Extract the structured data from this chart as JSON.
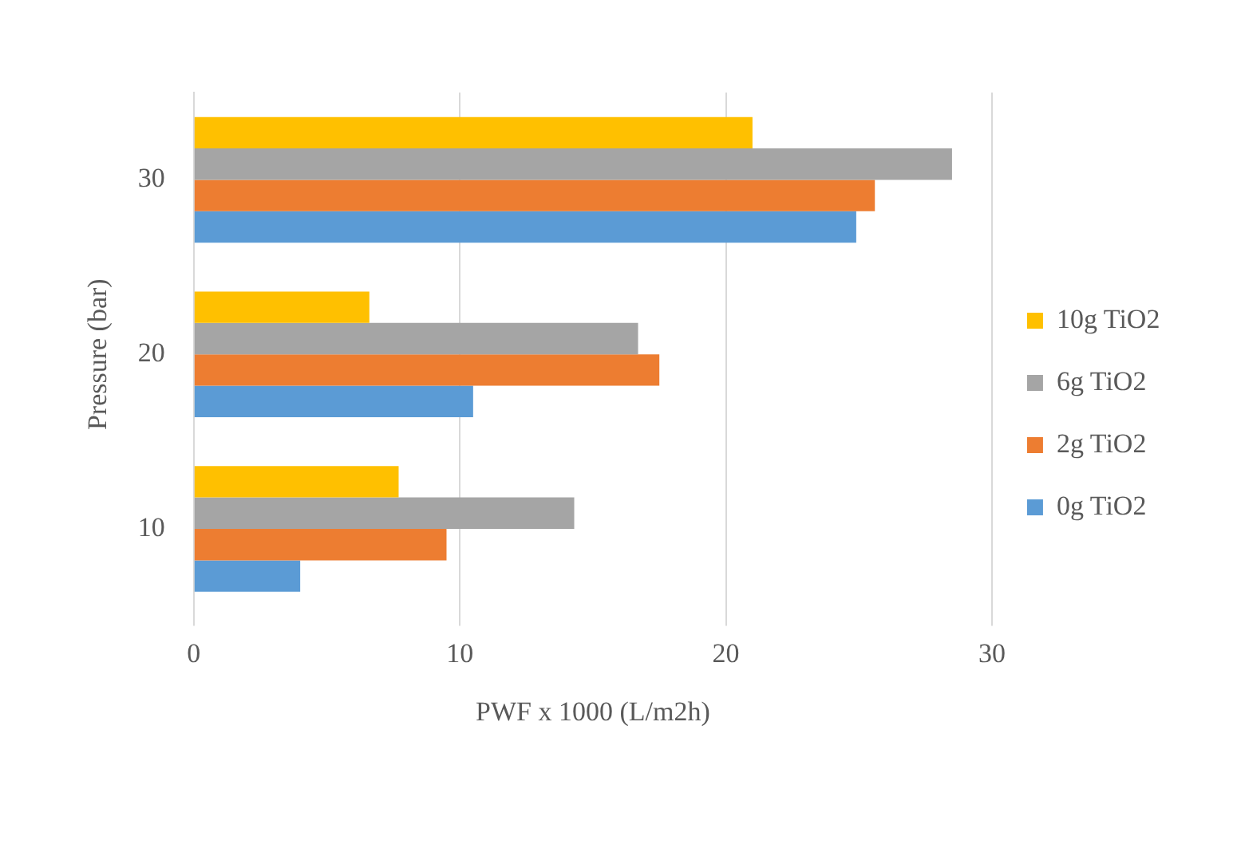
{
  "chart_data": {
    "type": "bar",
    "orientation": "horizontal",
    "xlabel": "PWF x 1000 (L/m2h)",
    "ylabel": "Pressure (bar)",
    "categories": [
      "30",
      "20",
      "10"
    ],
    "series": [
      {
        "name": "10g TiO2",
        "color": "#ffc000",
        "values": [
          21.0,
          6.6,
          7.7
        ]
      },
      {
        "name": "6g TiO2",
        "color": "#a5a5a5",
        "values": [
          28.5,
          16.7,
          14.3
        ]
      },
      {
        "name": "2g TiO2",
        "color": "#ed7d31",
        "values": [
          25.6,
          17.5,
          9.5
        ]
      },
      {
        "name": "0g TiO2",
        "color": "#5b9bd5",
        "values": [
          24.9,
          10.5,
          4.0
        ]
      }
    ],
    "xlim": [
      0,
      30
    ],
    "xticks": [
      0,
      10,
      20,
      30
    ],
    "grid": "x",
    "legend": "right"
  }
}
